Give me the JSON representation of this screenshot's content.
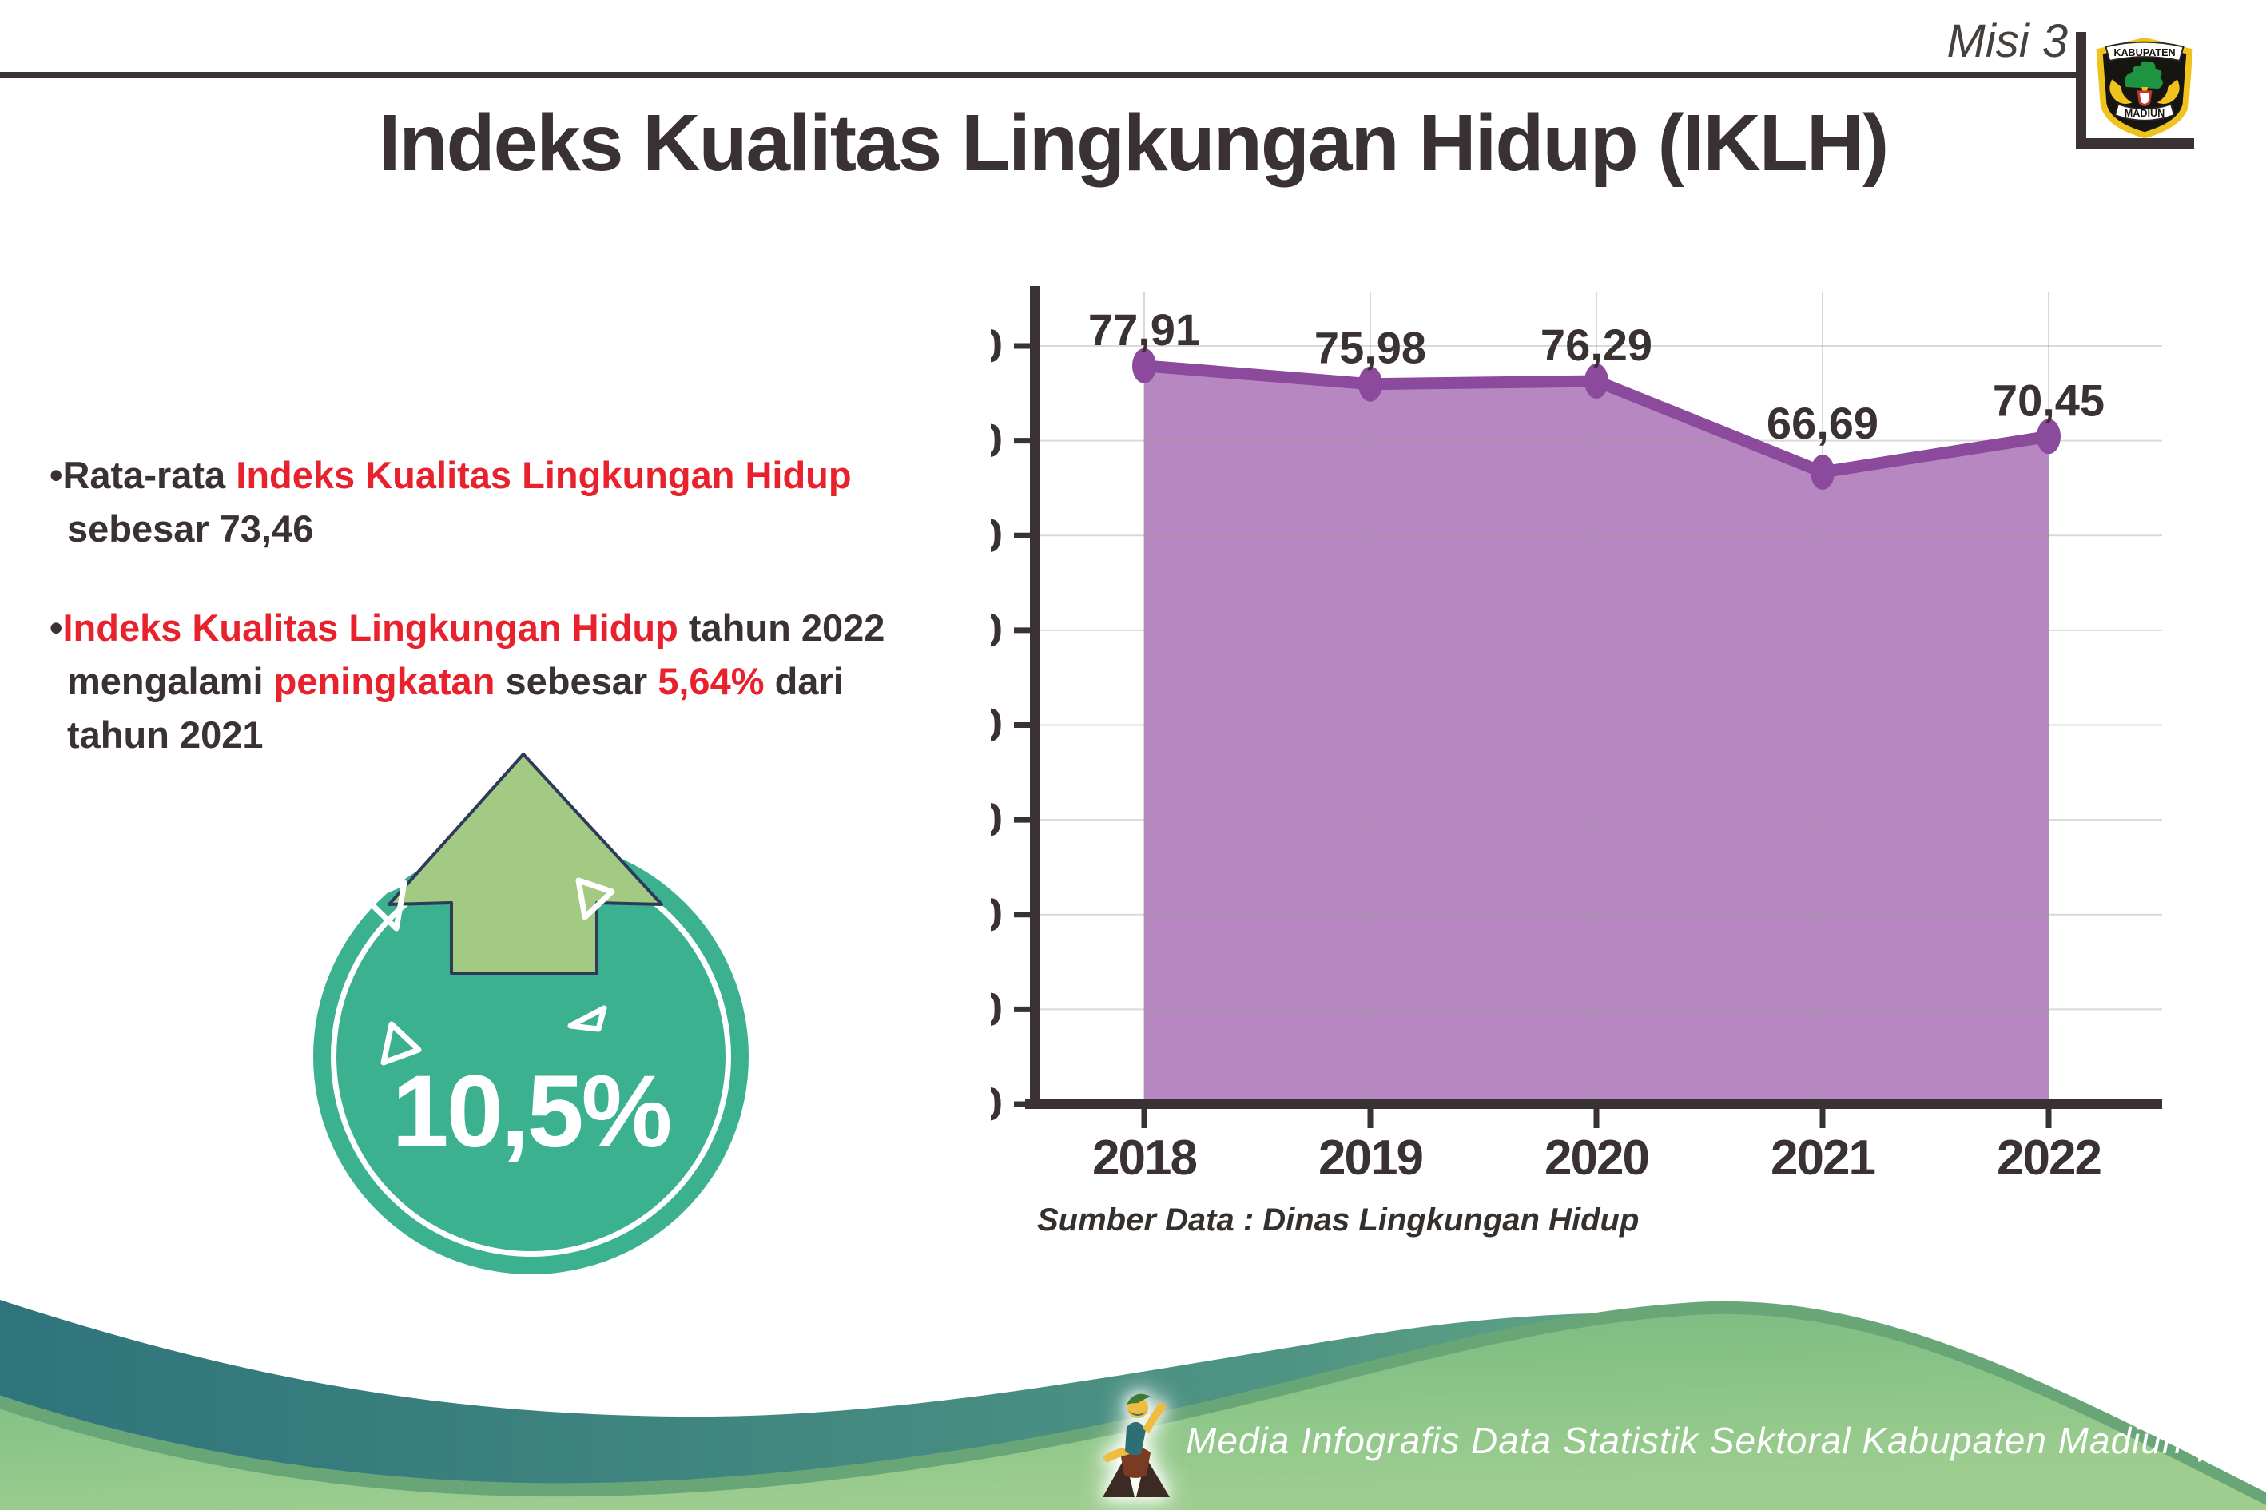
{
  "header": {
    "misi_label": "Misi 3",
    "logo_top": "KABUPATEN",
    "logo_bottom": "MADIUN"
  },
  "title": "Indeks Kualitas Lingkungan Hidup (IKLH)",
  "left_panel": {
    "bullets": [
      {
        "lines": [
          {
            "segments": [
              {
                "text": "•Rata-rata ",
                "color": "dark"
              },
              {
                "text": "Indeks Kualitas Lingkungan Hidup",
                "color": "red"
              }
            ]
          },
          {
            "segments": [
              {
                "text": "sebesar 73,46",
                "color": "dark"
              }
            ]
          }
        ]
      },
      {
        "lines": [
          {
            "segments": [
              {
                "text": "•",
                "color": "dark"
              },
              {
                "text": "Indeks Kualitas Lingkungan Hidup",
                "color": "red"
              },
              {
                "text": " tahun 2022",
                "color": "dark"
              }
            ]
          },
          {
            "segments": [
              {
                "text": "mengalami ",
                "color": "dark"
              },
              {
                "text": "peningkatan",
                "color": "red"
              },
              {
                "text": " sebesar ",
                "color": "dark"
              },
              {
                "text": "5,64%",
                "color": "red"
              },
              {
                "text": " dari",
                "color": "dark"
              }
            ]
          },
          {
            "segments": [
              {
                "text": "tahun 2021",
                "color": "dark"
              }
            ]
          }
        ]
      }
    ],
    "badge": {
      "value": "10,5%",
      "direction": "up"
    }
  },
  "chart_data": {
    "type": "area",
    "series_name": "IKLH",
    "categories": [
      "2018",
      "2019",
      "2020",
      "2021",
      "2022"
    ],
    "values": [
      77.91,
      75.98,
      76.29,
      66.69,
      70.45
    ],
    "value_labels": [
      "77,91",
      "75,98",
      "76,29",
      "66,69",
      "70,45"
    ],
    "ylim": [
      0,
      80
    ],
    "ytick_step": 10,
    "grid": true,
    "legend": "none",
    "source": "Sumber Data : Dinas Lingkungan Hidup",
    "colors": {
      "area": "#b787c1",
      "line": "#8b4a9b",
      "marker": "#8b4a9b"
    }
  },
  "footer": {
    "caption": "Media Infografis Data Statistik Sektoral Kabupaten Madiun |"
  },
  "colors": {
    "text_dark": "#3a3132",
    "accent_red": "#e8222d",
    "badge_teal": "#3cb18f",
    "arrow_green": "#a2ca82",
    "footer_teal": "#2e747b",
    "footer_green": "#8ac588"
  }
}
